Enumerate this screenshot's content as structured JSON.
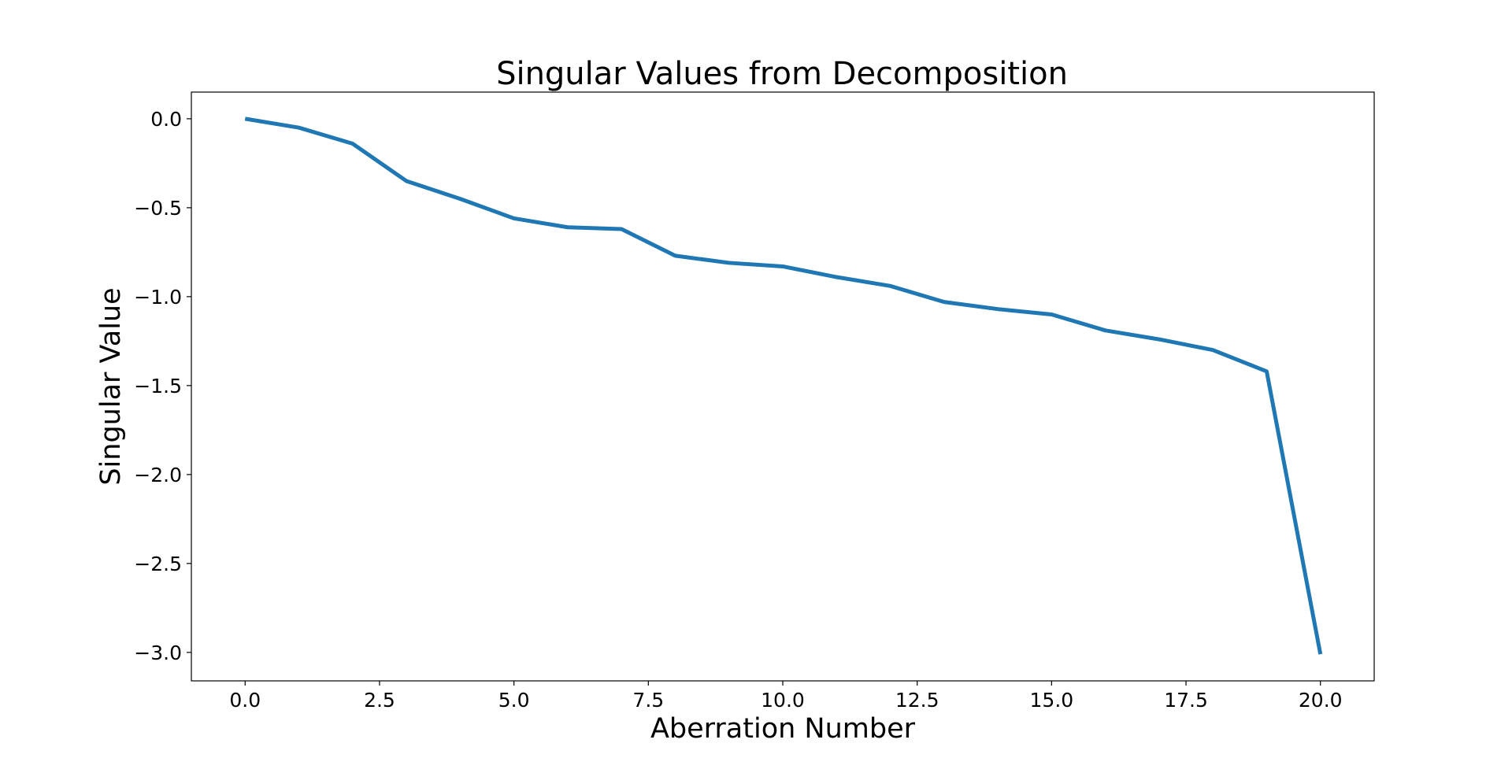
{
  "chart_data": {
    "type": "line",
    "title": "Singular Values from Decomposition",
    "xlabel": "Aberration Number",
    "ylabel": "Singular Value",
    "xlim": [
      -1.0,
      21.0
    ],
    "ylim": [
      -3.16,
      0.15
    ],
    "x_ticks": [
      0.0,
      2.5,
      5.0,
      7.5,
      10.0,
      12.5,
      15.0,
      17.5,
      20.0
    ],
    "x_tick_labels": [
      "0.0",
      "2.5",
      "5.0",
      "7.5",
      "10.0",
      "12.5",
      "15.0",
      "17.5",
      "20.0"
    ],
    "y_ticks": [
      0.0,
      -0.5,
      -1.0,
      -1.5,
      -2.0,
      -2.5,
      -3.0
    ],
    "y_tick_labels": [
      "0.0",
      "−0.5",
      "−1.0",
      "−1.5",
      "−2.0",
      "−2.5",
      "−3.0"
    ],
    "grid": false,
    "series": [
      {
        "color": "#1f77b4",
        "x": [
          0,
          1,
          2,
          3,
          4,
          5,
          6,
          7,
          8,
          9,
          10,
          11,
          12,
          13,
          14,
          15,
          16,
          17,
          18,
          19,
          20
        ],
        "values": [
          0.0,
          -0.05,
          -0.14,
          -0.35,
          -0.45,
          -0.56,
          -0.61,
          -0.62,
          -0.77,
          -0.81,
          -0.83,
          -0.89,
          -0.94,
          -1.03,
          -1.07,
          -1.1,
          -1.19,
          -1.24,
          -1.3,
          -1.42,
          -3.01
        ]
      }
    ]
  }
}
